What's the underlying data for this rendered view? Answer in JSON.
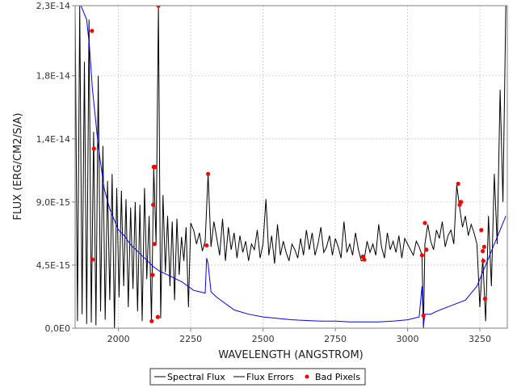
{
  "chart_data": {
    "type": "line",
    "title": "",
    "xlabel": "WAVELENGTH (ANGSTROM)",
    "ylabel": "FLUX (ERG/CM2/S/A)",
    "xlim": [
      1850,
      3345
    ],
    "ylim": [
      0,
      2.3e-14
    ],
    "x_ticks": [
      2000,
      2250,
      2500,
      2750,
      3000,
      3250
    ],
    "x_tick_labels": [
      "2000",
      "2250",
      "2500",
      "2750",
      "3000",
      "3250"
    ],
    "y_ticks": [
      0,
      4.5e-15,
      9e-15,
      1.35e-14,
      1.8e-14,
      2.3e-14
    ],
    "y_tick_labels": [
      "0,0E0",
      "4,5E-15",
      "9,0E-15",
      "1,4E-14",
      "1,8E-14",
      "2,3E-14"
    ],
    "grid": true,
    "legend_position": "bottom-center",
    "series": [
      {
        "name": "Spectral Flux",
        "color": "#000000",
        "x": [
          1850,
          1858,
          1866,
          1874,
          1882,
          1890,
          1898,
          1906,
          1914,
          1922,
          1930,
          1938,
          1946,
          1954,
          1962,
          1970,
          1978,
          1986,
          1994,
          2002,
          2010,
          2018,
          2026,
          2034,
          2042,
          2050,
          2058,
          2066,
          2074,
          2082,
          2090,
          2098,
          2106,
          2114,
          2122,
          2130,
          2138,
          2146,
          2154,
          2162,
          2170,
          2178,
          2186,
          2194,
          2202,
          2210,
          2218,
          2226,
          2234,
          2242,
          2250,
          2260,
          2270,
          2280,
          2290,
          2300,
          2310,
          2320,
          2330,
          2340,
          2350,
          2360,
          2370,
          2380,
          2390,
          2400,
          2410,
          2420,
          2430,
          2440,
          2450,
          2460,
          2470,
          2480,
          2490,
          2500,
          2510,
          2520,
          2530,
          2540,
          2550,
          2560,
          2570,
          2580,
          2590,
          2600,
          2610,
          2620,
          2630,
          2640,
          2650,
          2660,
          2670,
          2680,
          2690,
          2700,
          2710,
          2720,
          2730,
          2740,
          2750,
          2760,
          2770,
          2780,
          2790,
          2800,
          2810,
          2820,
          2830,
          2840,
          2850,
          2860,
          2870,
          2880,
          2890,
          2900,
          2910,
          2920,
          2930,
          2940,
          2950,
          2960,
          2970,
          2980,
          2990,
          3000,
          3010,
          3020,
          3030,
          3040,
          3050,
          3055,
          3060,
          3070,
          3080,
          3090,
          3100,
          3110,
          3120,
          3130,
          3140,
          3150,
          3160,
          3170,
          3180,
          3190,
          3200,
          3210,
          3220,
          3230,
          3240,
          3250,
          3260,
          3270,
          3280,
          3290,
          3300,
          3310,
          3320,
          3330,
          3340
        ],
        "y": [
          2.3e-14,
          5e-16,
          2.3e-14,
          1e-15,
          1.9e-14,
          3e-16,
          2.2e-14,
          4e-16,
          1.4e-14,
          2e-16,
          1.8e-14,
          1.2e-15,
          1.3e-14,
          6e-16,
          1.05e-14,
          2e-15,
          1.1e-14,
          0.0,
          1e-14,
          2.2e-15,
          9.8e-15,
          3e-15,
          9.2e-15,
          1.5e-15,
          8.6e-15,
          2.8e-15,
          9e-15,
          1.2e-15,
          8.8e-15,
          5e-16,
          1e-14,
          3.5e-15,
          8e-15,
          4e-16,
          1.15e-14,
          6e-15,
          2.3e-14,
          7e-16,
          9.5e-15,
          4e-15,
          8e-15,
          3e-15,
          7.6e-15,
          2e-15,
          7.8e-15,
          3.8e-15,
          6.5e-15,
          4.8e-15,
          7.2e-15,
          1.5e-15,
          7.5e-15,
          7e-15,
          6e-15,
          6.8e-15,
          5.5e-15,
          6.2e-15,
          1.1e-14,
          5.8e-15,
          7.6e-15,
          6.4e-15,
          5.2e-15,
          7.8e-15,
          4.8e-15,
          7.2e-15,
          5.6e-15,
          6.8e-15,
          5e-15,
          6.6e-15,
          5.4e-15,
          6.2e-15,
          4.8e-15,
          6e-15,
          5.6e-15,
          7e-15,
          5e-15,
          6e-15,
          9.2e-15,
          5.2e-15,
          6.6e-15,
          4.6e-15,
          7.4e-15,
          5.2e-15,
          6.2e-15,
          5.4e-15,
          4.8e-15,
          6e-15,
          5.6e-15,
          5e-15,
          6.4e-15,
          5.2e-15,
          7e-15,
          5.6e-15,
          6.8e-15,
          5.2e-15,
          6e-15,
          7.2e-15,
          5.4e-15,
          5.8e-15,
          6.6e-15,
          5.2e-15,
          6.4e-15,
          5.8e-15,
          5e-15,
          7.6e-15,
          5.4e-15,
          6e-15,
          5.2e-15,
          6.8e-15,
          5.6e-15,
          4.8e-15,
          4.9e-15,
          6.2e-15,
          5.4e-15,
          6e-15,
          5.2e-15,
          7.4e-15,
          5.8e-15,
          5e-15,
          6.8e-15,
          5.6e-15,
          6.2e-15,
          5.4e-15,
          6.6e-15,
          5e-15,
          6.4e-15,
          6e-15,
          5.6e-15,
          5.2e-15,
          6.2e-15,
          5.8e-15,
          5.2e-15,
          0.0,
          6e-15,
          7.4e-15,
          6.2e-15,
          5.6e-15,
          7e-15,
          6.4e-15,
          7.6e-15,
          5.8e-15,
          6.6e-15,
          7e-15,
          6e-15,
          1.02e-14,
          8.6e-15,
          7.2e-15,
          8e-15,
          6.6e-15,
          7.4e-15,
          6.8e-15,
          6e-15,
          1.5e-15,
          5e-15,
          5e-16,
          8e-15,
          3e-15,
          1.1e-14,
          6e-15,
          1.7e-14,
          9e-15,
          2.3e-14
        ]
      },
      {
        "name": "Flux Errors",
        "color": "#0000ff",
        "x": [
          1850,
          1870,
          1890,
          1900,
          1910,
          1920,
          1930,
          1940,
          1950,
          1960,
          1970,
          1980,
          1990,
          2000,
          2020,
          2040,
          2060,
          2080,
          2100,
          2120,
          2140,
          2160,
          2180,
          2200,
          2220,
          2240,
          2260,
          2280,
          2300,
          2305,
          2310,
          2320,
          2340,
          2360,
          2380,
          2400,
          2450,
          2500,
          2550,
          2600,
          2650,
          2700,
          2750,
          2800,
          2850,
          2900,
          2950,
          3000,
          3020,
          3040,
          3050,
          3055,
          3060,
          3080,
          3100,
          3150,
          3200,
          3240,
          3270,
          3300,
          3320,
          3340
        ],
        "y": [
          2.3e-14,
          2.3e-14,
          2.2e-14,
          2e-14,
          1.7e-14,
          1.5e-14,
          1.3e-14,
          1.15e-14,
          1e-14,
          9.2e-15,
          8.5e-15,
          8e-15,
          7.5e-15,
          7e-15,
          6.6e-15,
          6e-15,
          5.6e-15,
          5.2e-15,
          4.8e-15,
          4.4e-15,
          4.1e-15,
          3.9e-15,
          3.7e-15,
          3.5e-15,
          3.3e-15,
          3e-15,
          2.7e-15,
          2.6e-15,
          2.5e-15,
          5e-15,
          4.6e-15,
          2.6e-15,
          2.2e-15,
          1.9e-15,
          1.6e-15,
          1.3e-15,
          1e-15,
          8e-16,
          7e-16,
          6e-16,
          5.5e-16,
          5e-16,
          5e-16,
          4.5e-16,
          4.5e-16,
          4.5e-16,
          5e-16,
          6e-16,
          7e-16,
          8e-16,
          3e-15,
          2e-16,
          1e-15,
          1e-15,
          1.2e-15,
          1.6e-15,
          2e-15,
          3e-15,
          4.5e-15,
          6e-15,
          7e-15,
          8e-15
        ]
      },
      {
        "name": "Bad Pixels",
        "color": "#ff0000",
        "x": [
          1908,
          1910,
          1915,
          2115,
          2118,
          2120,
          2122,
          2125,
          2127,
          2136,
          2138,
          2305,
          2310,
          2845,
          2850,
          3050,
          3055,
          3060,
          3065,
          3175,
          3180,
          3185,
          3255,
          3260,
          3262,
          3265,
          3268
        ],
        "y": [
          2.12e-14,
          4.9e-15,
          1.28e-14,
          5e-16,
          3.8e-15,
          8.8e-15,
          1.15e-14,
          6e-15,
          1.15e-14,
          8e-16,
          2.3e-14,
          5.9e-15,
          1.1e-14,
          5.1e-15,
          4.9e-15,
          5.2e-15,
          9e-16,
          7.5e-15,
          5.6e-15,
          1.03e-14,
          8.8e-15,
          9e-15,
          7e-15,
          5.5e-15,
          4.8e-15,
          5.8e-15,
          2.1e-15
        ]
      }
    ]
  }
}
